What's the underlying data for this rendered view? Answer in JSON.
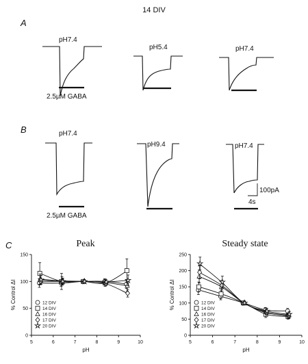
{
  "figure": {
    "title": "14 DIV",
    "panel_a": {
      "letter": "A",
      "labels": [
        "pH7.4",
        "pH5.4",
        "pH7.4"
      ],
      "gaba_label": "2.5µM GABA"
    },
    "panel_b": {
      "letter": "B",
      "labels": [
        "pH7.4",
        "pH9.4",
        "pH7.4"
      ],
      "gaba_label": "2.5µM GABA",
      "scale_y": "100pA",
      "scale_x": "4s"
    },
    "panel_c": {
      "letter": "C"
    }
  },
  "chart_data": [
    {
      "type": "scatter",
      "title": "Peak",
      "xlabel": "pH",
      "ylabel": "% Control ΔI",
      "xlim": [
        5,
        10
      ],
      "ylim": [
        0,
        150
      ],
      "xticks": [
        5,
        6,
        7,
        8,
        9,
        10
      ],
      "yticks": [
        0,
        50,
        100,
        150
      ],
      "grid": false,
      "legend_position": "bottom-left",
      "x": [
        5.4,
        6.4,
        7.4,
        8.4,
        9.4
      ],
      "series": [
        {
          "name": "12 DIV",
          "marker": "circle",
          "values": [
            97,
            97,
            100,
            100,
            95
          ],
          "errors": [
            8,
            6,
            0,
            5,
            8
          ]
        },
        {
          "name": "14 DIV",
          "marker": "square",
          "values": [
            115,
            100,
            100,
            97,
            120
          ],
          "errors": [
            20,
            15,
            0,
            6,
            22
          ]
        },
        {
          "name": "16 DIV",
          "marker": "triangle",
          "values": [
            104,
            101,
            100,
            98,
            92
          ],
          "errors": [
            10,
            8,
            0,
            5,
            10
          ]
        },
        {
          "name": "17 DIV",
          "marker": "diamond",
          "values": [
            100,
            100,
            100,
            96,
            78
          ],
          "errors": [
            6,
            5,
            0,
            4,
            7
          ]
        },
        {
          "name": "20 DIV",
          "marker": "star",
          "values": [
            103,
            100,
            100,
            99,
            102
          ],
          "errors": [
            8,
            6,
            0,
            4,
            10
          ]
        }
      ]
    },
    {
      "type": "scatter",
      "title": "Steady state",
      "xlabel": "pH",
      "ylabel": "% Control ΔI",
      "xlim": [
        5,
        10
      ],
      "ylim": [
        0,
        250
      ],
      "xticks": [
        5,
        6,
        7,
        8,
        9,
        10
      ],
      "yticks": [
        0,
        50,
        100,
        150,
        200,
        250
      ],
      "grid": false,
      "legend_position": "bottom-left",
      "x": [
        5.4,
        6.4,
        7.4,
        8.4,
        9.4
      ],
      "series": [
        {
          "name": "12 DIV",
          "marker": "circle",
          "values": [
            140,
            120,
            100,
            78,
            75
          ],
          "errors": [
            14,
            10,
            0,
            8,
            8
          ]
        },
        {
          "name": "14 DIV",
          "marker": "square",
          "values": [
            150,
            128,
            100,
            65,
            58
          ],
          "errors": [
            15,
            12,
            0,
            10,
            8
          ]
        },
        {
          "name": "16 DIV",
          "marker": "triangle",
          "values": [
            182,
            150,
            100,
            72,
            62
          ],
          "errors": [
            20,
            15,
            0,
            8,
            8
          ]
        },
        {
          "name": "17 DIV",
          "marker": "diamond",
          "values": [
            195,
            155,
            100,
            70,
            60
          ],
          "errors": [
            20,
            15,
            0,
            8,
            8
          ]
        },
        {
          "name": "20 DIV",
          "marker": "star",
          "values": [
            222,
            165,
            100,
            75,
            65
          ],
          "errors": [
            20,
            18,
            0,
            8,
            8
          ]
        }
      ]
    }
  ]
}
